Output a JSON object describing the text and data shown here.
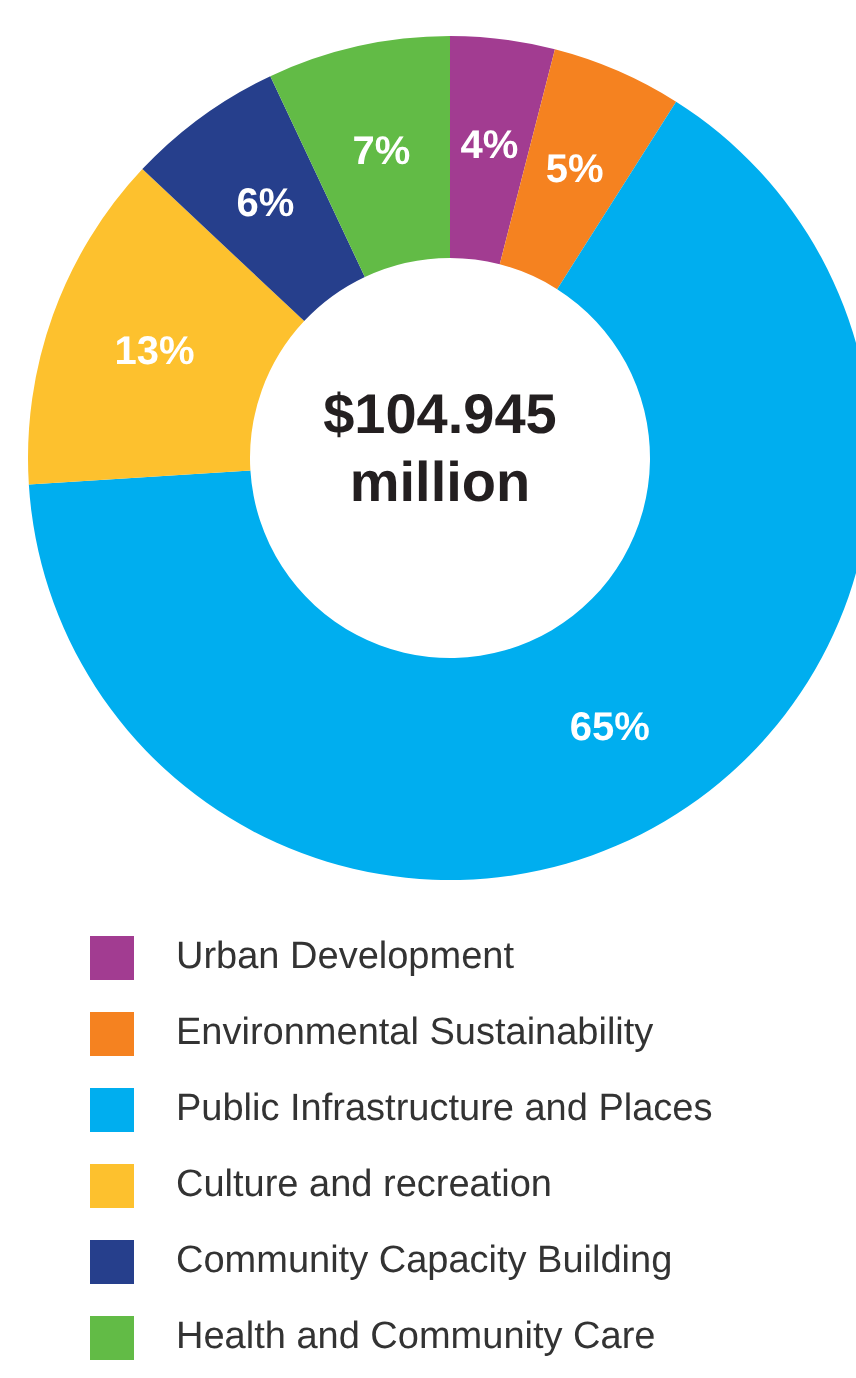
{
  "chart_data": {
    "type": "donut",
    "categories": [
      "Urban Development",
      "Environmental Sustainability",
      "Public Infrastructure and Places",
      "Culture and recreation",
      "Community Capacity Building",
      "Health and Community Care"
    ],
    "values": [
      4,
      5,
      65,
      13,
      6,
      7
    ],
    "value_labels": [
      "4%",
      "5%",
      "65%",
      "13%",
      "6%",
      "7%"
    ],
    "colors": [
      "#a23c91",
      "#f58220",
      "#00aeef",
      "#fdc12e",
      "#263f8c",
      "#62bb46"
    ],
    "annotations": [
      "$104.945 million"
    ],
    "legend": "bottom"
  }
}
